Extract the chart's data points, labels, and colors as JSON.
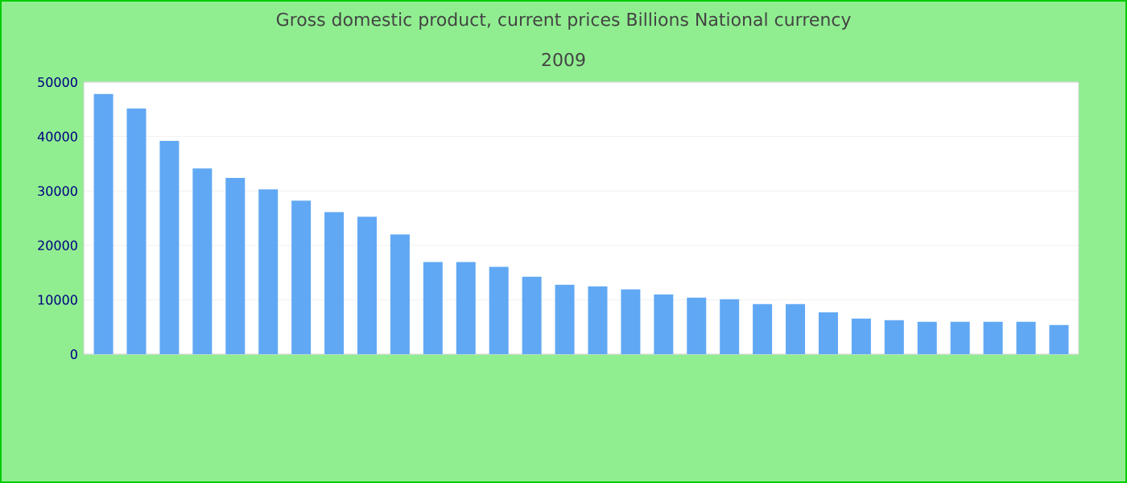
{
  "chart_data": {
    "type": "bar",
    "title": "Gross domestic product, current prices Billions National currency",
    "subtitle": "2009",
    "categories": [
      null,
      null,
      null,
      null,
      null,
      null,
      null,
      null,
      null,
      null,
      null,
      null,
      null,
      null,
      null,
      null,
      null,
      null,
      null,
      null,
      null,
      null,
      null,
      null,
      null,
      null,
      null,
      null,
      null,
      null
    ],
    "values": [
      47800,
      45150,
      39200,
      34150,
      32400,
      30300,
      28200,
      26100,
      25250,
      22000,
      16950,
      16950,
      16050,
      14250,
      12750,
      12450,
      11900,
      11000,
      10400,
      10100,
      9200,
      9200,
      7700,
      6550,
      6250,
      5950,
      5950,
      5950,
      5950,
      5350
    ],
    "color": "#61a8f4",
    "ylim": [
      0,
      50000
    ],
    "yticks": [
      0,
      10000,
      20000,
      30000,
      40000,
      50000
    ],
    "grid": "y",
    "tick_labels": "y"
  }
}
